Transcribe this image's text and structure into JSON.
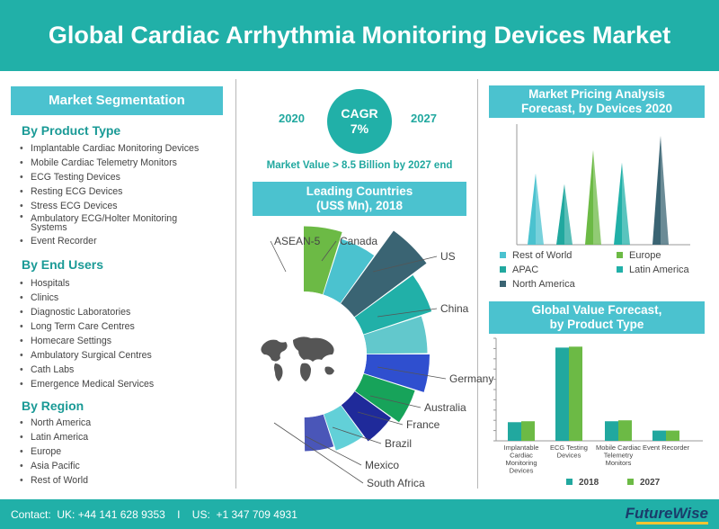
{
  "title": "Global Cardiac Arrhythmia Monitoring Devices Market",
  "segmentation": {
    "header": "Market Segmentation",
    "product_type": {
      "title": "By Product Type",
      "items": [
        "Implantable Cardiac Monitoring Devices",
        "Mobile Cardiac Telemetry Monitors",
        "ECG Testing Devices",
        "Resting ECG Devices",
        "Stress ECG Devices",
        "Ambulatory ECG/Holter Monitoring Systems",
        "Event Recorder"
      ]
    },
    "end_users": {
      "title": "By End Users",
      "items": [
        "Hospitals",
        "Clinics",
        "Diagnostic Laboratories",
        "Long Term Care Centres",
        "Homecare Settings",
        "Ambulatory Surgical Centres",
        "Cath Labs",
        "Emergence Medical Services"
      ]
    },
    "region": {
      "title": "By Region",
      "items": [
        "North America",
        "Latin America",
        "Europe",
        "Asia Pacific",
        "Rest of World"
      ]
    }
  },
  "cagr": {
    "label": "CAGR",
    "value": "7%",
    "year_start": "2020",
    "year_end": "2027"
  },
  "market_value": "Market Value > 8.5 Billion by 2027 end",
  "leading": {
    "header_line1": "Leading Countries",
    "header_line2": "(US$ Mn), 2018"
  },
  "pricing": {
    "header_line1": "Market Pricing Analysis",
    "header_line2": "Forecast, by Devices 2020"
  },
  "value_forecast": {
    "header_line1": "Global Value Forecast,",
    "header_line2": "by Product Type"
  },
  "footer": {
    "contact": "Contact:  UK: +44 141 628 9353    I    US:  +1 347 709 4931",
    "logo": "FutureWise"
  },
  "colors": {
    "teal": "#21b0a8",
    "light_teal": "#4bc2cf",
    "green": "#6cba45",
    "dark_slate": "#3a6473"
  },
  "chart_data": [
    {
      "type": "pie",
      "title": "Leading Countries (US$ Mn), 2018",
      "categories": [
        "ASEAN-5",
        "Canada",
        "US",
        "China",
        "Germany",
        "Australia",
        "France",
        "Brazil",
        "Mexico",
        "South Africa"
      ],
      "values": [
        105,
        90,
        160,
        120,
        95,
        100,
        80,
        60,
        45,
        35
      ],
      "colors": [
        "#6cba45",
        "#4bc2cf",
        "#3a6473",
        "#21b0a8",
        "#62c8cc",
        "#2f4fcf",
        "#17a35a",
        "#1f2a9a",
        "#62d0d8",
        "#4a56b8"
      ]
    },
    {
      "type": "bar",
      "title": "Market Pricing Analysis Forecast, by Devices 2020",
      "categories": [
        "Rest of World",
        "APAC",
        "Europe",
        "Latin America",
        "North America"
      ],
      "values": [
        80,
        68,
        106,
        92,
        122
      ],
      "ylim": [
        0,
        135
      ],
      "colors": [
        "#4bc2cf",
        "#21a89f",
        "#6cba45",
        "#21b0a8",
        "#3a6473"
      ],
      "legend": [
        "Rest of World",
        "Europe",
        "APAC",
        "Latin America",
        "North America"
      ]
    },
    {
      "type": "bar",
      "title": "Global Value Forecast, by Product Type",
      "categories": [
        "Implantable Cardiac Monitoring Devices",
        "ECG Testing Devices",
        "Mobile Cardiac Telemetry Monitors",
        "Event Recorder"
      ],
      "series": [
        {
          "name": "2018",
          "values": [
            20,
            100,
            21,
            11
          ],
          "color": "#21a89f"
        },
        {
          "name": "2027",
          "values": [
            21,
            101,
            22,
            11
          ],
          "color": "#6cba45"
        }
      ],
      "ylim": [
        0,
        110
      ]
    }
  ]
}
